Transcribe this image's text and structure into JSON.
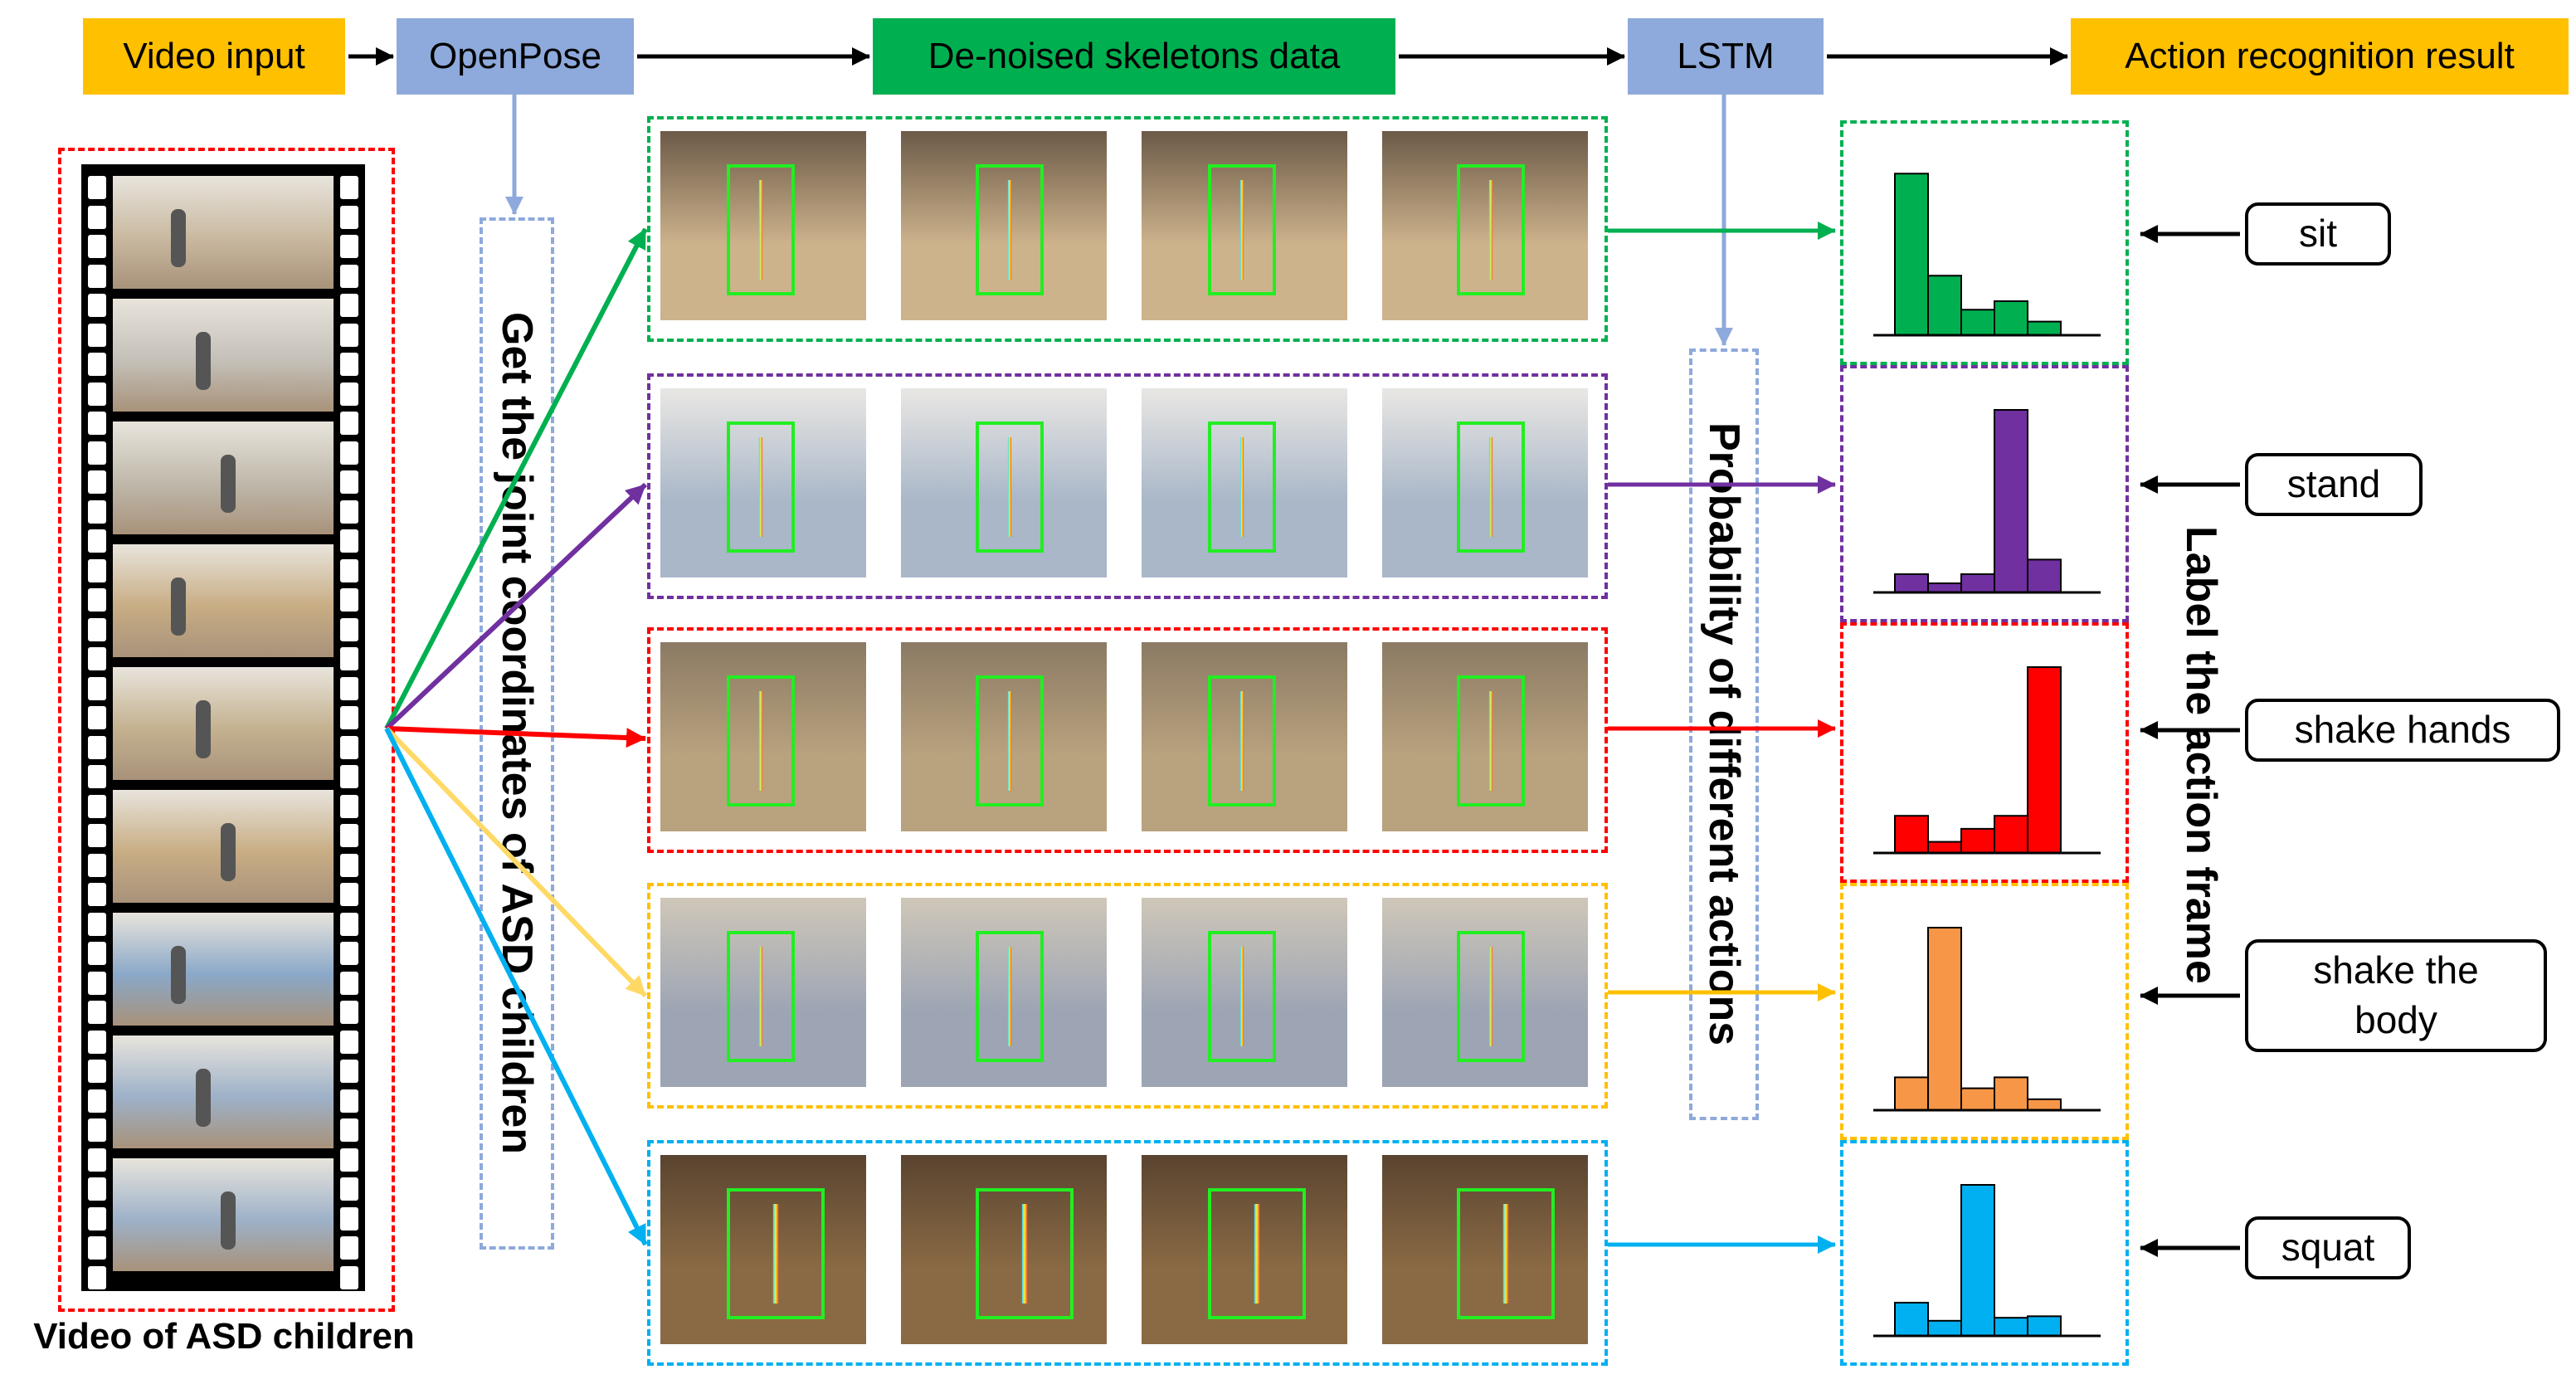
{
  "pipeline": {
    "video_input": "Video input",
    "openpose": "OpenPose",
    "denoised": "De-noised skeletons data",
    "lstm": "LSTM",
    "result": "Action recognition result"
  },
  "side_labels": {
    "joint_coords": "Get the joint coordinates of ASD children",
    "probability": "Probability of different actions",
    "label_frame": "Label the action frame"
  },
  "film_caption": "Video of ASD children",
  "actions": [
    {
      "name": "sit",
      "color": "#00b050",
      "hist": [
        0.95,
        0.35,
        0.15,
        0.2,
        0.08
      ]
    },
    {
      "name": "stand",
      "color": "#7030a0",
      "hist": [
        0.1,
        0.05,
        0.1,
        1.0,
        0.18
      ]
    },
    {
      "name": "shake hands",
      "color": "#ff0000",
      "hist": [
        0.2,
        0.06,
        0.13,
        0.2,
        1.0
      ]
    },
    {
      "name": "shake the body",
      "color": "#f79646",
      "hist": [
        0.18,
        1.0,
        0.12,
        0.18,
        0.06
      ]
    },
    {
      "name": "squat",
      "color": "#00b0f0",
      "hist": [
        0.22,
        0.1,
        1.0,
        0.12,
        0.13
      ]
    }
  ],
  "colors": {
    "yellow_box": "#ffc000",
    "blue_box": "#8ea9db",
    "green_box": "#00b050",
    "film_border": "#ff0000",
    "row_borders": [
      "#00b050",
      "#7030a0",
      "#ff0000",
      "#ffc000",
      "#00b0f0"
    ]
  }
}
